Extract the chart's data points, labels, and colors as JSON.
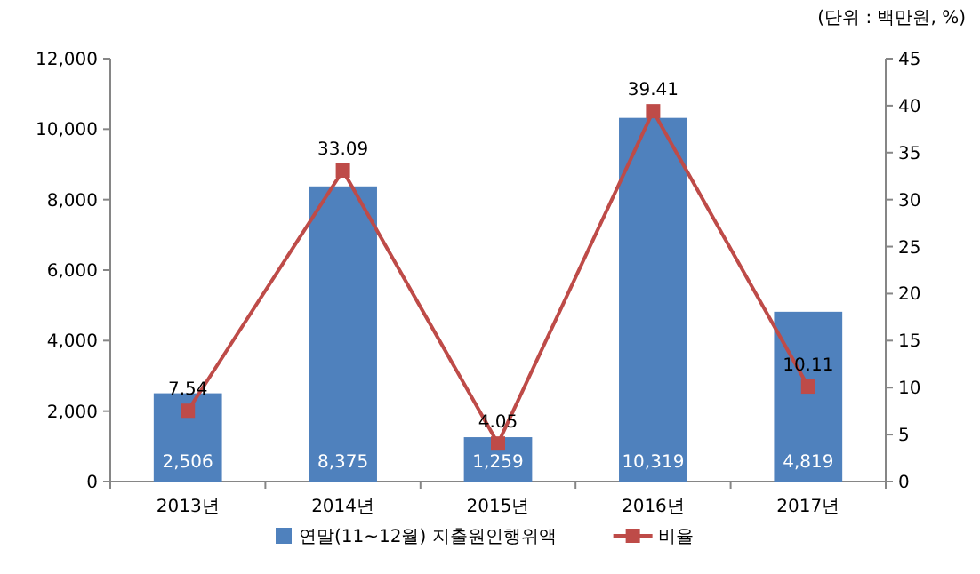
{
  "chart_data": {
    "type": "bar",
    "categories": [
      "2013년",
      "2014년",
      "2015년",
      "2016년",
      "2017년"
    ],
    "series": [
      {
        "name": "연말(11~12월) 지출원인행위액",
        "color": "#4f81bd",
        "values": [
          2506,
          8375,
          1259,
          10319,
          4819
        ],
        "value_labels": [
          "2,506",
          "8,375",
          "1,259",
          "10,319",
          "4,819"
        ]
      },
      {
        "name": "비율",
        "type": "line",
        "axis": "y2",
        "color": "#be4b48",
        "marker": "square",
        "values": [
          7.54,
          33.09,
          4.05,
          39.41,
          10.11
        ],
        "value_labels": [
          "7.54",
          "33.09",
          "4.05",
          "39.41",
          "10.11"
        ]
      }
    ],
    "ylim": [
      0,
      12000
    ],
    "yticks": [
      0,
      {
        "value": 2000,
        "label": "2,000"
      },
      {
        "value": 4000,
        "label": "4,000"
      },
      {
        "value": 6000,
        "label": "6,000"
      },
      {
        "value": 8000,
        "label": "8,000"
      },
      {
        "value": 10000,
        "label": "10,000"
      },
      {
        "value": 12000,
        "label": "12,000"
      }
    ],
    "y2lim": [
      0,
      45
    ],
    "y2ticks": [
      0,
      5,
      10,
      15,
      20,
      25,
      30,
      35,
      40,
      45
    ],
    "annotations": [
      "(단위 : 백만원, %)"
    ],
    "legend": "bottom",
    "grid": false
  }
}
